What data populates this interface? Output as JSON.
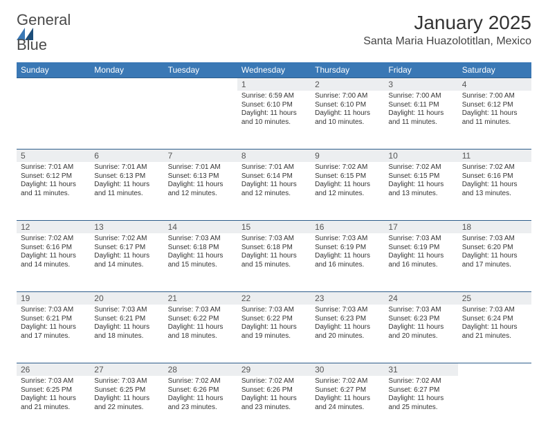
{
  "brand": {
    "name_line1": "General",
    "name_line2": "Blue",
    "logo_primary_color": "#3a78b5",
    "logo_dark_color": "#1d4e7a"
  },
  "header": {
    "title": "January 2025",
    "subtitle": "Santa Maria Huazolotitlan, Mexico"
  },
  "colors": {
    "header_bg": "#3a78b5",
    "header_text": "#ffffff",
    "daynum_bg": "#eceef0",
    "border": "#2c5c8a",
    "body_text": "#333333"
  },
  "weekdays": [
    "Sunday",
    "Monday",
    "Tuesday",
    "Wednesday",
    "Thursday",
    "Friday",
    "Saturday"
  ],
  "weeks": [
    [
      {
        "day": "",
        "text": ""
      },
      {
        "day": "",
        "text": ""
      },
      {
        "day": "",
        "text": ""
      },
      {
        "day": "1",
        "text": "Sunrise: 6:59 AM\nSunset: 6:10 PM\nDaylight: 11 hours and 10 minutes."
      },
      {
        "day": "2",
        "text": "Sunrise: 7:00 AM\nSunset: 6:10 PM\nDaylight: 11 hours and 10 minutes."
      },
      {
        "day": "3",
        "text": "Sunrise: 7:00 AM\nSunset: 6:11 PM\nDaylight: 11 hours and 11 minutes."
      },
      {
        "day": "4",
        "text": "Sunrise: 7:00 AM\nSunset: 6:12 PM\nDaylight: 11 hours and 11 minutes."
      }
    ],
    [
      {
        "day": "5",
        "text": "Sunrise: 7:01 AM\nSunset: 6:12 PM\nDaylight: 11 hours and 11 minutes."
      },
      {
        "day": "6",
        "text": "Sunrise: 7:01 AM\nSunset: 6:13 PM\nDaylight: 11 hours and 11 minutes."
      },
      {
        "day": "7",
        "text": "Sunrise: 7:01 AM\nSunset: 6:13 PM\nDaylight: 11 hours and 12 minutes."
      },
      {
        "day": "8",
        "text": "Sunrise: 7:01 AM\nSunset: 6:14 PM\nDaylight: 11 hours and 12 minutes."
      },
      {
        "day": "9",
        "text": "Sunrise: 7:02 AM\nSunset: 6:15 PM\nDaylight: 11 hours and 12 minutes."
      },
      {
        "day": "10",
        "text": "Sunrise: 7:02 AM\nSunset: 6:15 PM\nDaylight: 11 hours and 13 minutes."
      },
      {
        "day": "11",
        "text": "Sunrise: 7:02 AM\nSunset: 6:16 PM\nDaylight: 11 hours and 13 minutes."
      }
    ],
    [
      {
        "day": "12",
        "text": "Sunrise: 7:02 AM\nSunset: 6:16 PM\nDaylight: 11 hours and 14 minutes."
      },
      {
        "day": "13",
        "text": "Sunrise: 7:02 AM\nSunset: 6:17 PM\nDaylight: 11 hours and 14 minutes."
      },
      {
        "day": "14",
        "text": "Sunrise: 7:03 AM\nSunset: 6:18 PM\nDaylight: 11 hours and 15 minutes."
      },
      {
        "day": "15",
        "text": "Sunrise: 7:03 AM\nSunset: 6:18 PM\nDaylight: 11 hours and 15 minutes."
      },
      {
        "day": "16",
        "text": "Sunrise: 7:03 AM\nSunset: 6:19 PM\nDaylight: 11 hours and 16 minutes."
      },
      {
        "day": "17",
        "text": "Sunrise: 7:03 AM\nSunset: 6:19 PM\nDaylight: 11 hours and 16 minutes."
      },
      {
        "day": "18",
        "text": "Sunrise: 7:03 AM\nSunset: 6:20 PM\nDaylight: 11 hours and 17 minutes."
      }
    ],
    [
      {
        "day": "19",
        "text": "Sunrise: 7:03 AM\nSunset: 6:21 PM\nDaylight: 11 hours and 17 minutes."
      },
      {
        "day": "20",
        "text": "Sunrise: 7:03 AM\nSunset: 6:21 PM\nDaylight: 11 hours and 18 minutes."
      },
      {
        "day": "21",
        "text": "Sunrise: 7:03 AM\nSunset: 6:22 PM\nDaylight: 11 hours and 18 minutes."
      },
      {
        "day": "22",
        "text": "Sunrise: 7:03 AM\nSunset: 6:22 PM\nDaylight: 11 hours and 19 minutes."
      },
      {
        "day": "23",
        "text": "Sunrise: 7:03 AM\nSunset: 6:23 PM\nDaylight: 11 hours and 20 minutes."
      },
      {
        "day": "24",
        "text": "Sunrise: 7:03 AM\nSunset: 6:23 PM\nDaylight: 11 hours and 20 minutes."
      },
      {
        "day": "25",
        "text": "Sunrise: 7:03 AM\nSunset: 6:24 PM\nDaylight: 11 hours and 21 minutes."
      }
    ],
    [
      {
        "day": "26",
        "text": "Sunrise: 7:03 AM\nSunset: 6:25 PM\nDaylight: 11 hours and 21 minutes."
      },
      {
        "day": "27",
        "text": "Sunrise: 7:03 AM\nSunset: 6:25 PM\nDaylight: 11 hours and 22 minutes."
      },
      {
        "day": "28",
        "text": "Sunrise: 7:02 AM\nSunset: 6:26 PM\nDaylight: 11 hours and 23 minutes."
      },
      {
        "day": "29",
        "text": "Sunrise: 7:02 AM\nSunset: 6:26 PM\nDaylight: 11 hours and 23 minutes."
      },
      {
        "day": "30",
        "text": "Sunrise: 7:02 AM\nSunset: 6:27 PM\nDaylight: 11 hours and 24 minutes."
      },
      {
        "day": "31",
        "text": "Sunrise: 7:02 AM\nSunset: 6:27 PM\nDaylight: 11 hours and 25 minutes."
      },
      {
        "day": "",
        "text": ""
      }
    ]
  ]
}
